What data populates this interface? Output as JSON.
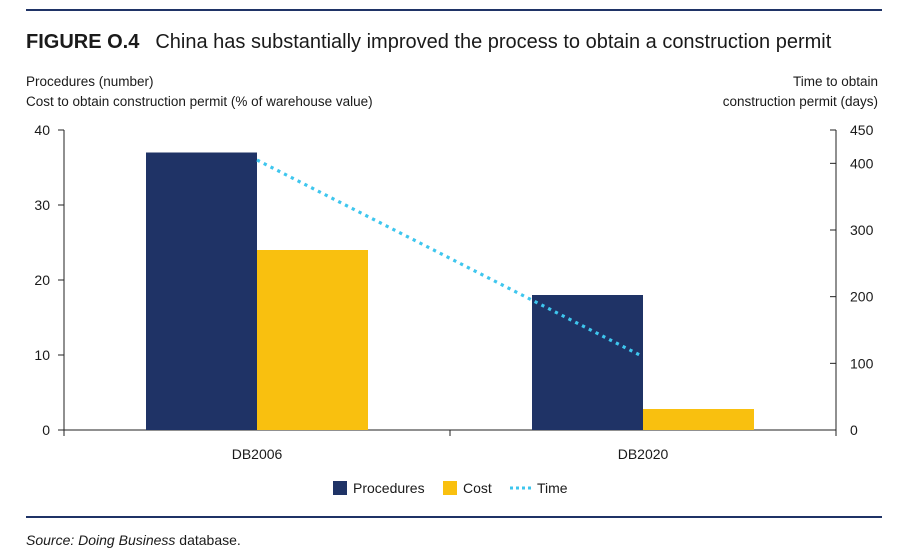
{
  "figure": {
    "label": "FIGURE O.4",
    "title": "China has substantially improved the process to obtain a construction permit"
  },
  "colors": {
    "procedures": "#1f3366",
    "cost": "#f9c00f",
    "time": "#3ec6ee",
    "rule": "#1f3366"
  },
  "chart_data": {
    "type": "bar",
    "categories": [
      "DB2006",
      "DB2020"
    ],
    "left_axis": {
      "title_lines": [
        "Procedures (number)",
        "Cost to obtain construction permit (% of warehouse value)"
      ],
      "ylim": [
        0,
        40
      ],
      "ticks": [
        0,
        10,
        20,
        30,
        40
      ]
    },
    "right_axis": {
      "title_lines": [
        "Time to obtain",
        "construction permit (days)"
      ],
      "ylim": [
        0,
        450
      ],
      "ticks": [
        0,
        100,
        200,
        300,
        400,
        450
      ]
    },
    "series": [
      {
        "name": "Procedures",
        "type": "bar",
        "axis": "left",
        "values": [
          37,
          18
        ]
      },
      {
        "name": "Cost",
        "type": "bar",
        "axis": "left",
        "values": [
          24,
          2.8
        ]
      },
      {
        "name": "Time",
        "type": "line",
        "style": "dotted",
        "axis": "right",
        "values": [
          405,
          110
        ]
      }
    ],
    "legend": {
      "position": "bottom",
      "entries": [
        "Procedures",
        "Cost",
        "Time"
      ]
    }
  },
  "source": {
    "prefix": "Source: ",
    "italic": "Doing Business",
    "suffix": " database."
  }
}
